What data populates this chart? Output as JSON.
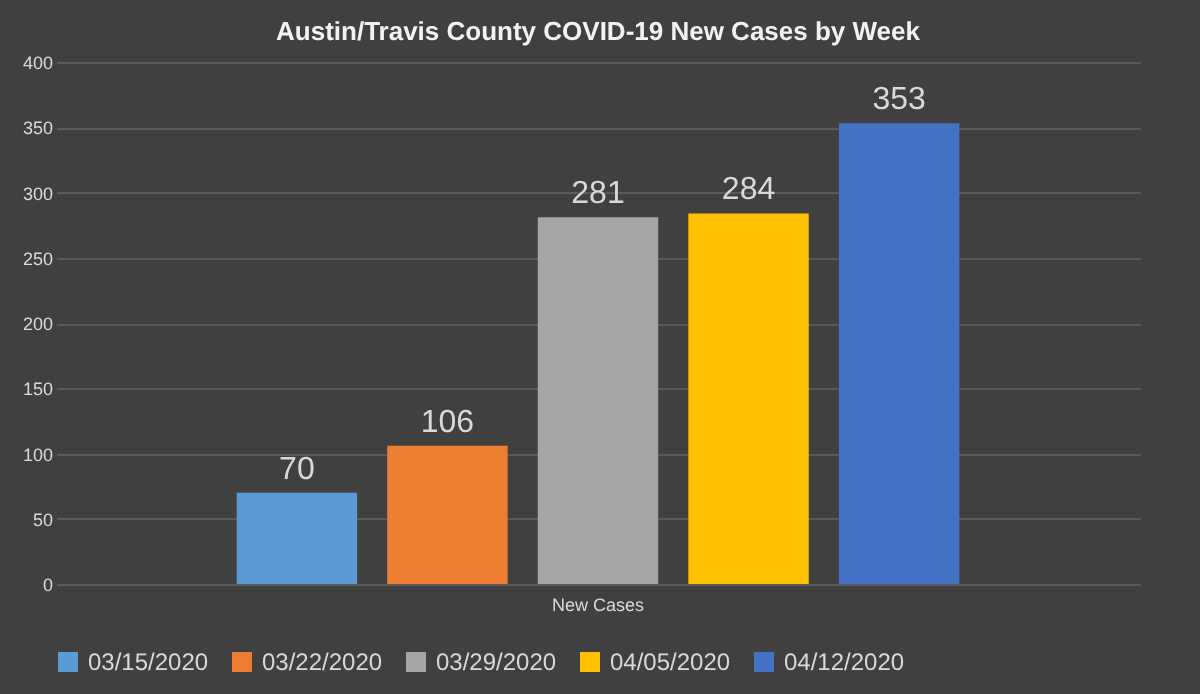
{
  "chart_data": {
    "type": "bar",
    "title": "Austin/Travis County COVID-19 New Cases by Week",
    "categories": [
      "New Cases"
    ],
    "series": [
      {
        "name": "03/15/2020",
        "color": "#5b9bd5",
        "values": [
          70
        ]
      },
      {
        "name": "03/22/2020",
        "color": "#ed7d31",
        "values": [
          106
        ]
      },
      {
        "name": "03/29/2020",
        "color": "#a5a5a5",
        "values": [
          281
        ]
      },
      {
        "name": "04/05/2020",
        "color": "#ffc000",
        "values": [
          284
        ]
      },
      {
        "name": "04/12/2020",
        "color": "#4472c4",
        "values": [
          353
        ]
      }
    ],
    "ylim": [
      0,
      400
    ],
    "yticks": [
      0,
      50,
      100,
      150,
      200,
      250,
      300,
      350,
      400
    ],
    "grid": "y",
    "legend": "bottom",
    "data_labels": true
  }
}
